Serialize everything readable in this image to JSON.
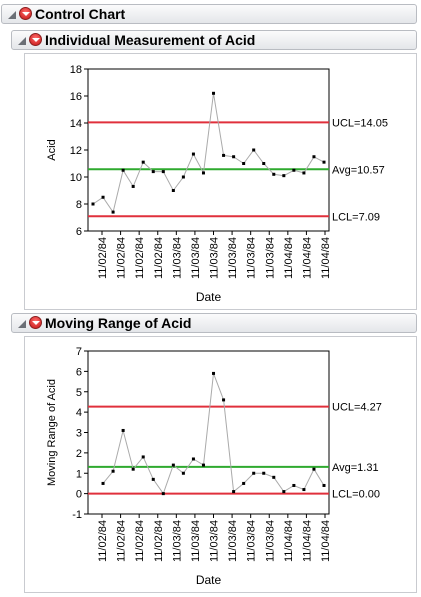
{
  "report": {
    "title": "Control Chart"
  },
  "chart_data": [
    {
      "type": "line",
      "title": "Individual Measurement of Acid",
      "xlabel": "Date",
      "ylabel": "Acid",
      "ylim": [
        6,
        18
      ],
      "yticks": [
        6,
        8,
        10,
        12,
        14,
        16,
        18
      ],
      "x_tick_labels": [
        "11/02/84",
        "11/02/84",
        "11/02/84",
        "11/02/84",
        "11/03/84",
        "11/03/84",
        "11/03/84",
        "11/03/84",
        "11/03/84",
        "11/03/84",
        "11/04/84",
        "11/04/84",
        "11/04/84"
      ],
      "values": [
        8.0,
        8.5,
        7.4,
        10.5,
        9.3,
        11.1,
        10.4,
        10.4,
        9.0,
        10.0,
        11.7,
        10.3,
        16.2,
        11.6,
        11.5,
        11.0,
        12.0,
        11.0,
        10.2,
        10.1,
        10.5,
        10.3,
        11.5,
        11.1
      ],
      "limits": {
        "ucl": 14.05,
        "ucl_label": "UCL=14.05",
        "avg": 10.57,
        "avg_label": "Avg=10.57",
        "lcl": 7.09,
        "lcl_label": "LCL=7.09"
      },
      "colors": {
        "limit": "#e0303c",
        "center": "#2faa2f",
        "line": "#aaaaaa",
        "point": "#000000"
      }
    },
    {
      "type": "line",
      "title": "Moving Range of Acid",
      "xlabel": "Date",
      "ylabel": "Moving Range of Acid",
      "ylim": [
        -1,
        7
      ],
      "yticks": [
        -1,
        0,
        1,
        2,
        3,
        4,
        5,
        6,
        7
      ],
      "x_tick_labels": [
        "11/02/84",
        "11/02/84",
        "11/02/84",
        "11/02/84",
        "11/03/84",
        "11/03/84",
        "11/03/84",
        "11/03/84",
        "11/03/84",
        "11/03/84",
        "11/04/84",
        "11/04/84",
        "11/04/84"
      ],
      "values": [
        null,
        0.5,
        1.1,
        3.1,
        1.2,
        1.8,
        0.7,
        0.0,
        1.4,
        1.0,
        1.7,
        1.4,
        5.9,
        4.6,
        0.1,
        0.5,
        1.0,
        1.0,
        0.8,
        0.1,
        0.4,
        0.2,
        1.2,
        0.4
      ],
      "limits": {
        "ucl": 4.27,
        "ucl_label": "UCL=4.27",
        "avg": 1.31,
        "avg_label": "Avg=1.31",
        "lcl": 0.0,
        "lcl_label": "LCL=0.00"
      },
      "colors": {
        "limit": "#e0303c",
        "center": "#2faa2f",
        "line": "#aaaaaa",
        "point": "#000000"
      }
    }
  ]
}
